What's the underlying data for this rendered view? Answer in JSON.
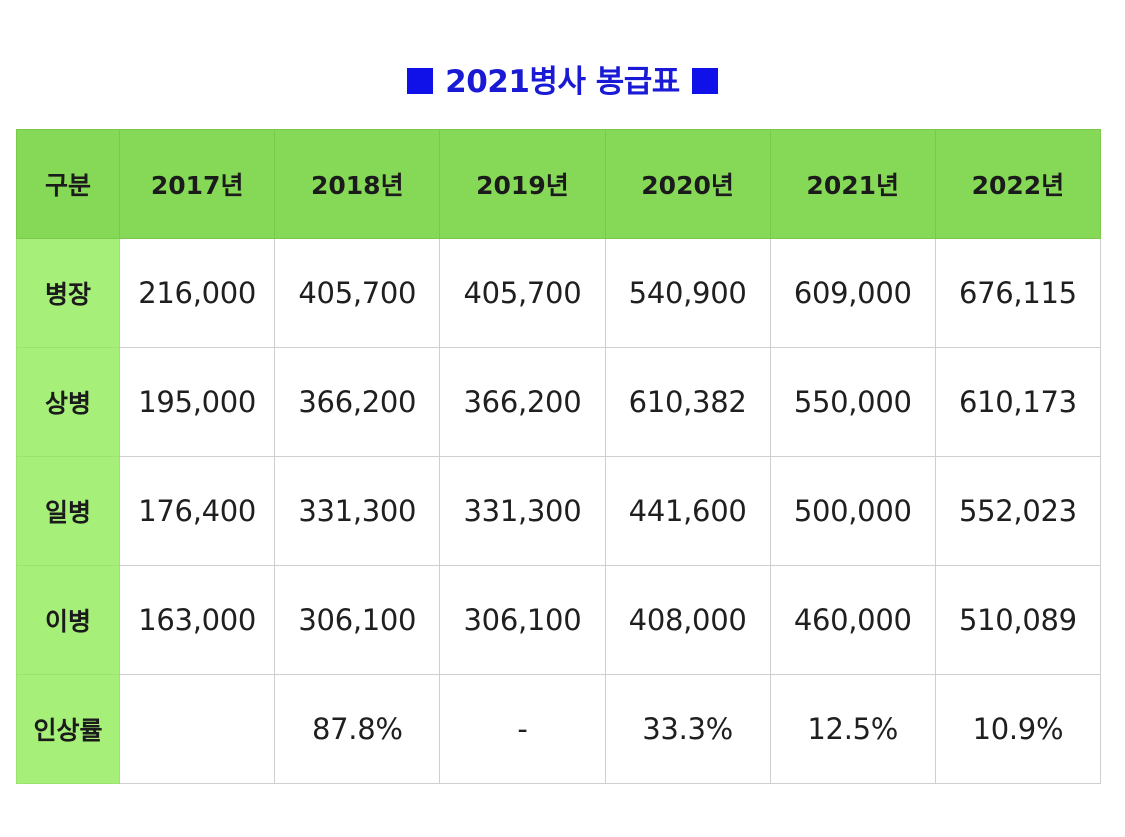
{
  "title": "2021병사 봉급표",
  "table": {
    "headers": [
      "구분",
      "2017년",
      "2018년",
      "2019년",
      "2020년",
      "2021년",
      "2022년"
    ],
    "rows": [
      {
        "label": "병장",
        "values": [
          "216,000",
          "405,700",
          "405,700",
          "540,900",
          "609,000",
          "676,115"
        ]
      },
      {
        "label": "상병",
        "values": [
          "195,000",
          "366,200",
          "366,200",
          "610,382",
          "550,000",
          "610,173"
        ]
      },
      {
        "label": "일병",
        "values": [
          "176,400",
          "331,300",
          "331,300",
          "441,600",
          "500,000",
          "552,023"
        ]
      },
      {
        "label": "이병",
        "values": [
          "163,000",
          "306,100",
          "306,100",
          "408,000",
          "460,000",
          "510,089"
        ]
      },
      {
        "label": "인상률",
        "values": [
          "",
          "87.8%",
          "-",
          "33.3%",
          "12.5%",
          "10.9%"
        ]
      }
    ]
  },
  "colors": {
    "title": "#1a1ad6",
    "header_bg": "#86d957",
    "row_label_bg": "#a6f07a"
  }
}
